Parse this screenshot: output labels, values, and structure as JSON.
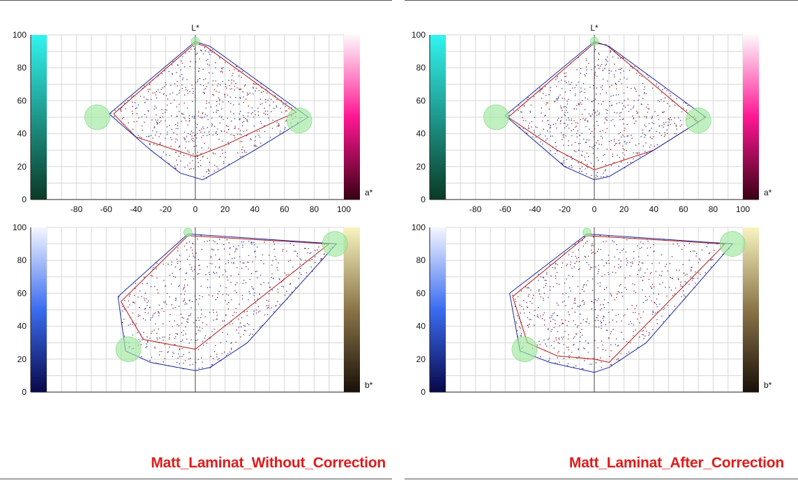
{
  "captions": {
    "left": "Matt_Laminat_Without_Correction",
    "right": "Matt_Laminat_After_Correction"
  },
  "colors": {
    "caption": "#e21a1a",
    "outer_gamut": "#1b2a9e",
    "inner_gamut": "#b01818",
    "markers": "#9ee89e",
    "grid": "#d6d6d6"
  },
  "chart_data": [
    {
      "type": "scatter",
      "panel": "left-top",
      "plane": "L*-a*",
      "xlabel": "a*",
      "ylabel": "L*",
      "xlim": [
        -100,
        100
      ],
      "ylim": [
        0,
        100
      ],
      "x_ticks": [
        "-80",
        "-60",
        "-40",
        "-20",
        "0",
        "20",
        "40",
        "60",
        "80",
        "100"
      ],
      "y_ticks": [
        "0",
        "20",
        "40",
        "60",
        "80",
        "100"
      ],
      "colorbar_left": [
        "#0a3a26",
        "#32f4f0"
      ],
      "colorbar_right": [
        "#3a0014",
        "#ff1693",
        "#fff8fc"
      ],
      "grid": true,
      "series": [
        {
          "points": [
            [
              -55,
              52
            ],
            [
              0,
              95
            ],
            [
              7,
              93
            ],
            [
              68,
              53
            ],
            [
              55,
              48
            ],
            [
              20,
              33
            ],
            [
              0,
              26
            ],
            [
              -40,
              38
            ],
            [
              -55,
              52
            ]
          ]
        },
        {
          "points": [
            [
              -58,
              52
            ],
            [
              0,
              96
            ],
            [
              10,
              93
            ],
            [
              76,
              50
            ],
            [
              40,
              30
            ],
            [
              15,
              17
            ],
            [
              5,
              12
            ],
            [
              -10,
              16
            ],
            [
              -30,
              30
            ],
            [
              -58,
              52
            ]
          ]
        }
      ],
      "markers": [
        [
          0,
          96
        ],
        [
          -66,
          50
        ],
        [
          70,
          48
        ]
      ]
    },
    {
      "type": "scatter",
      "panel": "left-bottom",
      "plane": "L*-b*",
      "xlabel": "b*",
      "ylabel": "",
      "xlim": [
        -100,
        100
      ],
      "ylim": [
        0,
        100
      ],
      "x_ticks": [],
      "y_ticks": [
        "0",
        "20",
        "40",
        "60",
        "80",
        "100"
      ],
      "colorbar_left": [
        "#08084a",
        "#3a6cf0",
        "#f4f6ff"
      ],
      "colorbar_right": [
        "#1a1008",
        "#8a7448",
        "#f8f4c0"
      ],
      "grid": true,
      "series": [
        {
          "points": [
            [
              -50,
              55
            ],
            [
              -5,
              95
            ],
            [
              90,
              90
            ],
            [
              0,
              26
            ],
            [
              -35,
              32
            ],
            [
              -50,
              55
            ]
          ]
        },
        {
          "points": [
            [
              -52,
              58
            ],
            [
              -5,
              96
            ],
            [
              95,
              90
            ],
            [
              35,
              30
            ],
            [
              10,
              15
            ],
            [
              0,
              13
            ],
            [
              -30,
              18
            ],
            [
              -47,
              25
            ],
            [
              -52,
              58
            ]
          ]
        }
      ],
      "markers": [
        [
          -5,
          97
        ],
        [
          -45,
          26
        ],
        [
          94,
          90
        ]
      ]
    },
    {
      "type": "scatter",
      "panel": "right-top",
      "plane": "L*-a*",
      "xlabel": "a*",
      "ylabel": "L*",
      "xlim": [
        -100,
        100
      ],
      "ylim": [
        0,
        100
      ],
      "x_ticks": [
        "-80",
        "-60",
        "-40",
        "-20",
        "0",
        "20",
        "40",
        "60",
        "80",
        "100"
      ],
      "y_ticks": [
        "0",
        "20",
        "40",
        "60",
        "80",
        "100"
      ],
      "colorbar_left": [
        "#0a3a26",
        "#32f4f0"
      ],
      "colorbar_right": [
        "#3a0014",
        "#ff1693",
        "#fff8fc"
      ],
      "grid": true,
      "series": [
        {
          "points": [
            [
              -58,
              50
            ],
            [
              0,
              95
            ],
            [
              8,
              94
            ],
            [
              70,
              47
            ],
            [
              40,
              30
            ],
            [
              0,
              18
            ],
            [
              -25,
              30
            ],
            [
              -58,
              50
            ]
          ]
        },
        {
          "points": [
            [
              -60,
              51
            ],
            [
              0,
              96
            ],
            [
              10,
              93
            ],
            [
              75,
              50
            ],
            [
              40,
              30
            ],
            [
              10,
              14
            ],
            [
              0,
              12
            ],
            [
              -20,
              20
            ],
            [
              -60,
              51
            ]
          ]
        }
      ],
      "markers": [
        [
          0,
          96
        ],
        [
          -66,
          50
        ],
        [
          70,
          48
        ]
      ]
    },
    {
      "type": "scatter",
      "panel": "right-bottom",
      "plane": "L*-b*",
      "xlabel": "b*",
      "ylabel": "",
      "xlim": [
        -100,
        100
      ],
      "ylim": [
        0,
        100
      ],
      "x_ticks": [],
      "y_ticks": [
        "0",
        "20",
        "40",
        "60",
        "80",
        "100"
      ],
      "colorbar_left": [
        "#08084a",
        "#3a6cf0",
        "#f4f6ff"
      ],
      "colorbar_right": [
        "#1a1008",
        "#8a7448",
        "#f8f4c0"
      ],
      "grid": true,
      "series": [
        {
          "points": [
            [
              -55,
              58
            ],
            [
              -5,
              95
            ],
            [
              88,
              90
            ],
            [
              10,
              18
            ],
            [
              0,
              20
            ],
            [
              -25,
              22
            ],
            [
              -45,
              30
            ],
            [
              -55,
              58
            ]
          ]
        },
        {
          "points": [
            [
              -57,
              60
            ],
            [
              -5,
              96
            ],
            [
              93,
              90
            ],
            [
              35,
              30
            ],
            [
              10,
              15
            ],
            [
              0,
              12
            ],
            [
              -30,
              18
            ],
            [
              -50,
              25
            ],
            [
              -57,
              60
            ]
          ]
        }
      ],
      "markers": [
        [
          -5,
          97
        ],
        [
          -47,
          26
        ],
        [
          93,
          90
        ]
      ]
    }
  ]
}
